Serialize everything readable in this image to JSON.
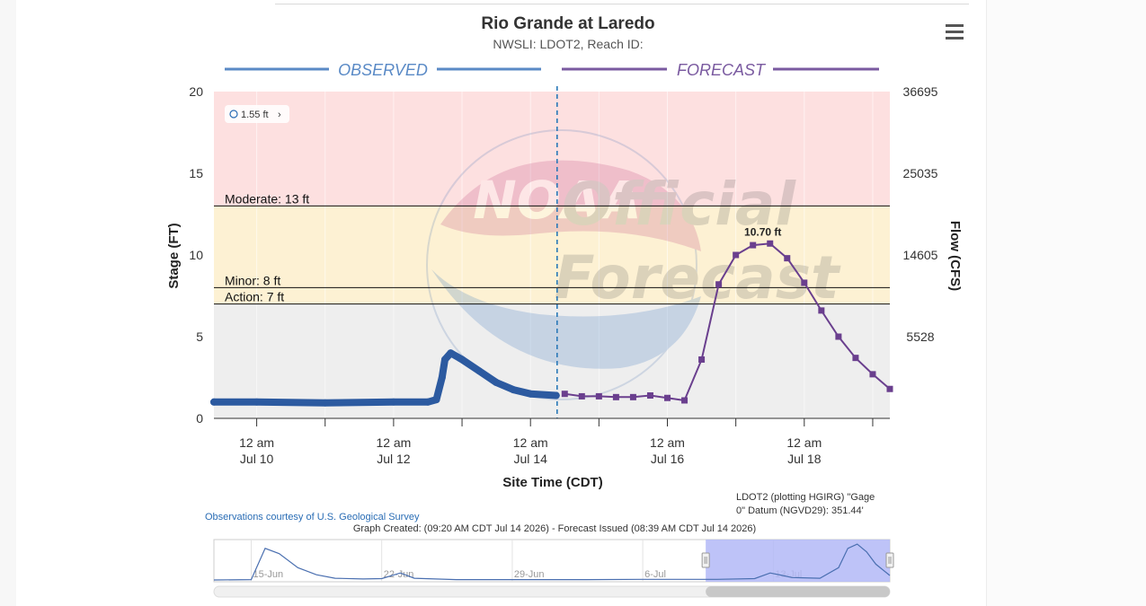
{
  "chart_data": {
    "type": "line",
    "title": "Rio Grande at Laredo",
    "subtitle": "NWSLI: LDOT2, Reach ID:",
    "menu_icon": "hamburger-menu-icon",
    "segments": {
      "observed": "OBSERVED",
      "forecast": "FORECAST"
    },
    "ylabel": "Stage (FT)",
    "y2label": "Flow (CFS)",
    "xlabel": "Site Time (CDT)",
    "x_range": [
      "2026-07-09 09:00",
      "2026-07-19 06:00"
    ],
    "ylim": [
      0,
      20
    ],
    "y_ticks": [
      0,
      5,
      10,
      15,
      20
    ],
    "y_tick_labels": [
      "0",
      "5",
      "10",
      "15",
      "20"
    ],
    "y2_ticks": [
      {
        "stage": 5,
        "label": "5528"
      },
      {
        "stage": 10,
        "label": "14605"
      },
      {
        "stage": 15,
        "label": "25035"
      },
      {
        "stage": 20,
        "label": "36695"
      }
    ],
    "x_ticks": [
      {
        "t": "2026-07-10 00:00",
        "line1": "12 am",
        "line2": "Jul 10"
      },
      {
        "t": "2026-07-12 00:00",
        "line1": "12 am",
        "line2": "Jul 12"
      },
      {
        "t": "2026-07-14 00:00",
        "line1": "12 am",
        "line2": "Jul 14"
      },
      {
        "t": "2026-07-16 00:00",
        "line1": "12 am",
        "line2": "Jul 16"
      },
      {
        "t": "2026-07-18 00:00",
        "line1": "12 am",
        "line2": "Jul 18"
      }
    ],
    "x_minor_ticks": [
      "2026-07-11 00:00",
      "2026-07-13 00:00",
      "2026-07-15 00:00",
      "2026-07-17 00:00",
      "2026-07-19 00:00"
    ],
    "issue_time": "2026-07-14 09:20",
    "bands": [
      {
        "name": "major",
        "from": 15,
        "to": 20,
        "color": "#fde0e0"
      },
      {
        "name": "moderate",
        "from": 13,
        "to": 15,
        "color": "#fde0e0"
      },
      {
        "name": "minor",
        "from": 8,
        "to": 13,
        "color": "#fdf1d3"
      },
      {
        "name": "action",
        "from": 7,
        "to": 8,
        "color": "#fdf1d3"
      },
      {
        "name": "normal",
        "from": 0,
        "to": 7,
        "color": "#eeeeee"
      }
    ],
    "thresholds": [
      {
        "label": "Moderate: 13 ft",
        "value": 13
      },
      {
        "label": "Minor: 8 ft",
        "value": 8
      },
      {
        "label": "Action: 7 ft",
        "value": 7
      }
    ],
    "flood_badge": "1.55 ft",
    "series": [
      {
        "name": "Observed",
        "color": "#2c5aa0",
        "points": [
          [
            "2026-07-09 09:00",
            1.0
          ],
          [
            "2026-07-10 00:00",
            1.0
          ],
          [
            "2026-07-11 00:00",
            0.95
          ],
          [
            "2026-07-12 00:00",
            1.0
          ],
          [
            "2026-07-12 12:00",
            1.0
          ],
          [
            "2026-07-12 15:00",
            1.15
          ],
          [
            "2026-07-12 17:00",
            2.5
          ],
          [
            "2026-07-12 18:00",
            3.6
          ],
          [
            "2026-07-12 20:00",
            4.0
          ],
          [
            "2026-07-13 00:00",
            3.6
          ],
          [
            "2026-07-13 06:00",
            2.9
          ],
          [
            "2026-07-13 12:00",
            2.2
          ],
          [
            "2026-07-13 18:00",
            1.75
          ],
          [
            "2026-07-14 00:00",
            1.5
          ],
          [
            "2026-07-14 09:00",
            1.4
          ]
        ]
      },
      {
        "name": "Forecast",
        "color": "#6a3f8e",
        "points": [
          [
            "2026-07-14 12:00",
            1.5
          ],
          [
            "2026-07-14 18:00",
            1.35
          ],
          [
            "2026-07-15 00:00",
            1.35
          ],
          [
            "2026-07-15 06:00",
            1.3
          ],
          [
            "2026-07-15 12:00",
            1.3
          ],
          [
            "2026-07-15 18:00",
            1.4
          ],
          [
            "2026-07-16 00:00",
            1.25
          ],
          [
            "2026-07-16 06:00",
            1.1
          ],
          [
            "2026-07-16 12:00",
            3.6
          ],
          [
            "2026-07-16 18:00",
            8.2
          ],
          [
            "2026-07-17 00:00",
            10.0
          ],
          [
            "2026-07-17 06:00",
            10.6
          ],
          [
            "2026-07-17 12:00",
            10.7
          ],
          [
            "2026-07-17 18:00",
            9.8
          ],
          [
            "2026-07-18 00:00",
            8.3
          ],
          [
            "2026-07-18 06:00",
            6.6
          ],
          [
            "2026-07-18 12:00",
            5.0
          ],
          [
            "2026-07-18 18:00",
            3.7
          ],
          [
            "2026-07-19 00:00",
            2.7
          ],
          [
            "2026-07-19 06:00",
            1.8
          ]
        ]
      }
    ],
    "peak_label": {
      "text": "10.70 ft",
      "t": "2026-07-17 12:00",
      "value": 10.7
    },
    "watermark": {
      "text1": "NOAA",
      "text2": "Official",
      "text3": "Forecast"
    }
  },
  "footer": {
    "credit": "Observations courtesy of U.S. Geological Survey",
    "datum_line1": "LDOT2 (plotting HGIRG) \"Gage",
    "datum_line2": "0\" Datum (NGVD29): 351.44'",
    "graph_created": "Graph Created: (09:20 AM CDT Jul 14 2026) - Forecast Issued (08:39 AM CDT Jul 14 2026)"
  },
  "navigator": {
    "labels": [
      {
        "text": "15-Jun",
        "t": "2026-06-15 00:00"
      },
      {
        "text": "22-Jun",
        "t": "2026-06-22 00:00"
      },
      {
        "text": "29-Jun",
        "t": "2026-06-29 00:00"
      },
      {
        "text": "6-Jul",
        "t": "2026-07-06 00:00"
      },
      {
        "text": "13-Jul",
        "t": "2026-07-13 00:00"
      }
    ],
    "range": [
      "2026-06-13 00:00",
      "2026-07-19 06:00"
    ],
    "selected": [
      "2026-07-09 09:00",
      "2026-07-19 06:00"
    ],
    "series": [
      [
        "2026-06-13 00:00",
        0.5
      ],
      [
        "2026-06-15 00:00",
        0.6
      ],
      [
        "2026-06-15 18:00",
        9.5
      ],
      [
        "2026-06-16 12:00",
        8.0
      ],
      [
        "2026-06-17 12:00",
        4.0
      ],
      [
        "2026-06-18 12:00",
        2.0
      ],
      [
        "2026-06-19 12:00",
        1.0
      ],
      [
        "2026-06-21 00:00",
        0.8
      ],
      [
        "2026-06-22 00:00",
        0.9
      ],
      [
        "2026-06-23 00:00",
        2.5
      ],
      [
        "2026-06-23 18:00",
        1.0
      ],
      [
        "2026-06-26 00:00",
        0.6
      ],
      [
        "2026-06-29 00:00",
        0.6
      ],
      [
        "2026-07-03 00:00",
        0.6
      ],
      [
        "2026-07-06 00:00",
        0.7
      ],
      [
        "2026-07-10 00:00",
        0.7
      ],
      [
        "2026-07-12 00:00",
        0.9
      ],
      [
        "2026-07-12 20:00",
        2.5
      ],
      [
        "2026-07-13 12:00",
        1.8
      ],
      [
        "2026-07-14 00:00",
        1.2
      ],
      [
        "2026-07-15 12:00",
        1.0
      ],
      [
        "2026-07-16 12:00",
        4.0
      ],
      [
        "2026-07-17 00:00",
        9.5
      ],
      [
        "2026-07-17 12:00",
        10.7
      ],
      [
        "2026-07-18 00:00",
        8.5
      ],
      [
        "2026-07-18 12:00",
        5.0
      ],
      [
        "2026-07-19 06:00",
        1.8
      ]
    ]
  }
}
